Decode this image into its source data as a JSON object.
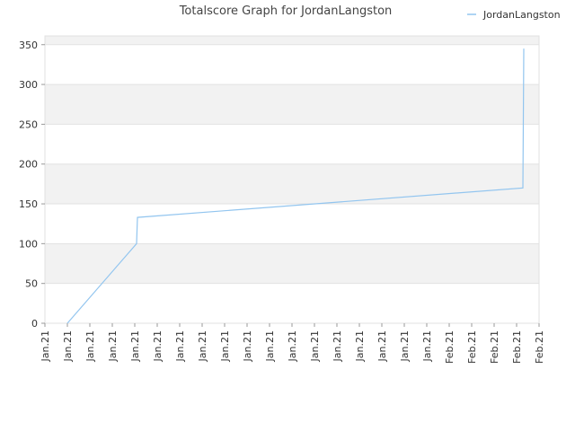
{
  "chart_data": {
    "type": "line",
    "title": "Totalscore Graph for JordanLangston",
    "x": [
      1,
      4.08,
      4.12,
      21.28,
      21.32
    ],
    "series": [
      {
        "name": "JordanLangston",
        "color": "#92c5ef",
        "values": [
          0,
          100,
          133,
          170,
          345
        ]
      }
    ],
    "xlim": [
      0,
      22
    ],
    "xticks": [
      {
        "value": 0,
        "label": "Jan.21"
      },
      {
        "value": 1,
        "label": "Jan.21"
      },
      {
        "value": 2,
        "label": "Jan.21"
      },
      {
        "value": 3,
        "label": "Jan.21"
      },
      {
        "value": 4,
        "label": "Jan.21"
      },
      {
        "value": 5,
        "label": "Jan.21"
      },
      {
        "value": 6,
        "label": "Jan.21"
      },
      {
        "value": 7,
        "label": "Jan.21"
      },
      {
        "value": 8,
        "label": "Jan.21"
      },
      {
        "value": 9,
        "label": "Jan.21"
      },
      {
        "value": 10,
        "label": "Jan.21"
      },
      {
        "value": 11,
        "label": "Jan.21"
      },
      {
        "value": 12,
        "label": "Jan.21"
      },
      {
        "value": 13,
        "label": "Jan.21"
      },
      {
        "value": 14,
        "label": "Jan.21"
      },
      {
        "value": 15,
        "label": "Jan.21"
      },
      {
        "value": 16,
        "label": "Jan.21"
      },
      {
        "value": 17,
        "label": "Jan.21"
      },
      {
        "value": 18,
        "label": "Feb.21"
      },
      {
        "value": 19,
        "label": "Feb.21"
      },
      {
        "value": 20,
        "label": "Feb.21"
      },
      {
        "value": 21,
        "label": "Feb.21"
      },
      {
        "value": 22,
        "label": "Feb.21"
      }
    ],
    "ylim": [
      0,
      361
    ],
    "yticks": [
      0,
      50,
      100,
      150,
      200,
      250,
      300,
      350
    ],
    "grid": true
  }
}
